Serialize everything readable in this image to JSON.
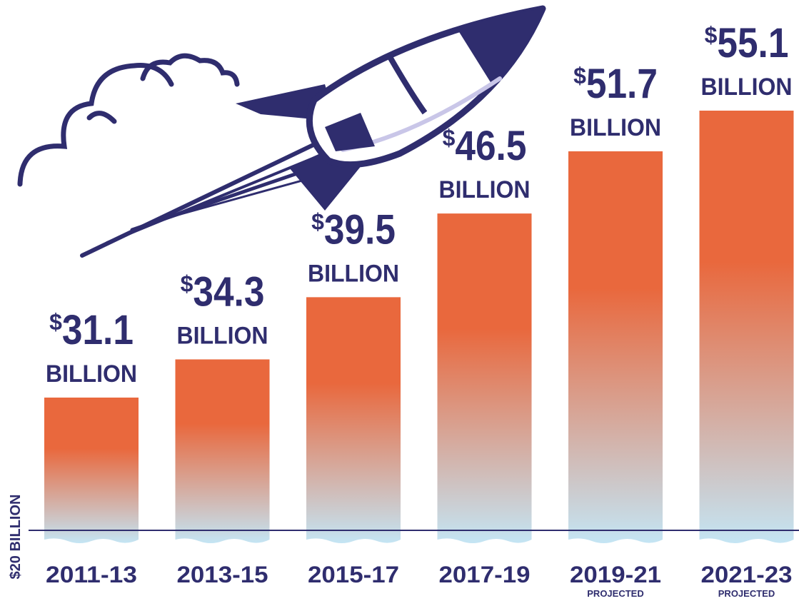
{
  "chart_data": {
    "type": "bar",
    "categories": [
      "2011-13",
      "2013-15",
      "2015-17",
      "2017-19",
      "2019-21",
      "2021-23"
    ],
    "values": [
      31.1,
      34.3,
      39.5,
      46.5,
      51.7,
      55.1
    ],
    "value_labels": [
      "31.1",
      "34.3",
      "39.5",
      "46.5",
      "51.7",
      "55.1"
    ],
    "value_prefix": "$",
    "unit_label": "BILLION",
    "sublabels": [
      "",
      "",
      "",
      "",
      "PROJECTED",
      "PROJECTED"
    ],
    "baseline_label": "$20 BILLION",
    "baseline_value": 20,
    "ylim": [
      20,
      55.1
    ],
    "grid": false,
    "legend": "none",
    "title": "",
    "xlabel": "",
    "ylabel": "",
    "colors": {
      "bar_top": "#e9683d",
      "bar_bottom": "#c4e5f4",
      "text": "#2f2d6e",
      "rocket": "#2f2d6e"
    },
    "decoration_icon": "rocket-icon"
  }
}
